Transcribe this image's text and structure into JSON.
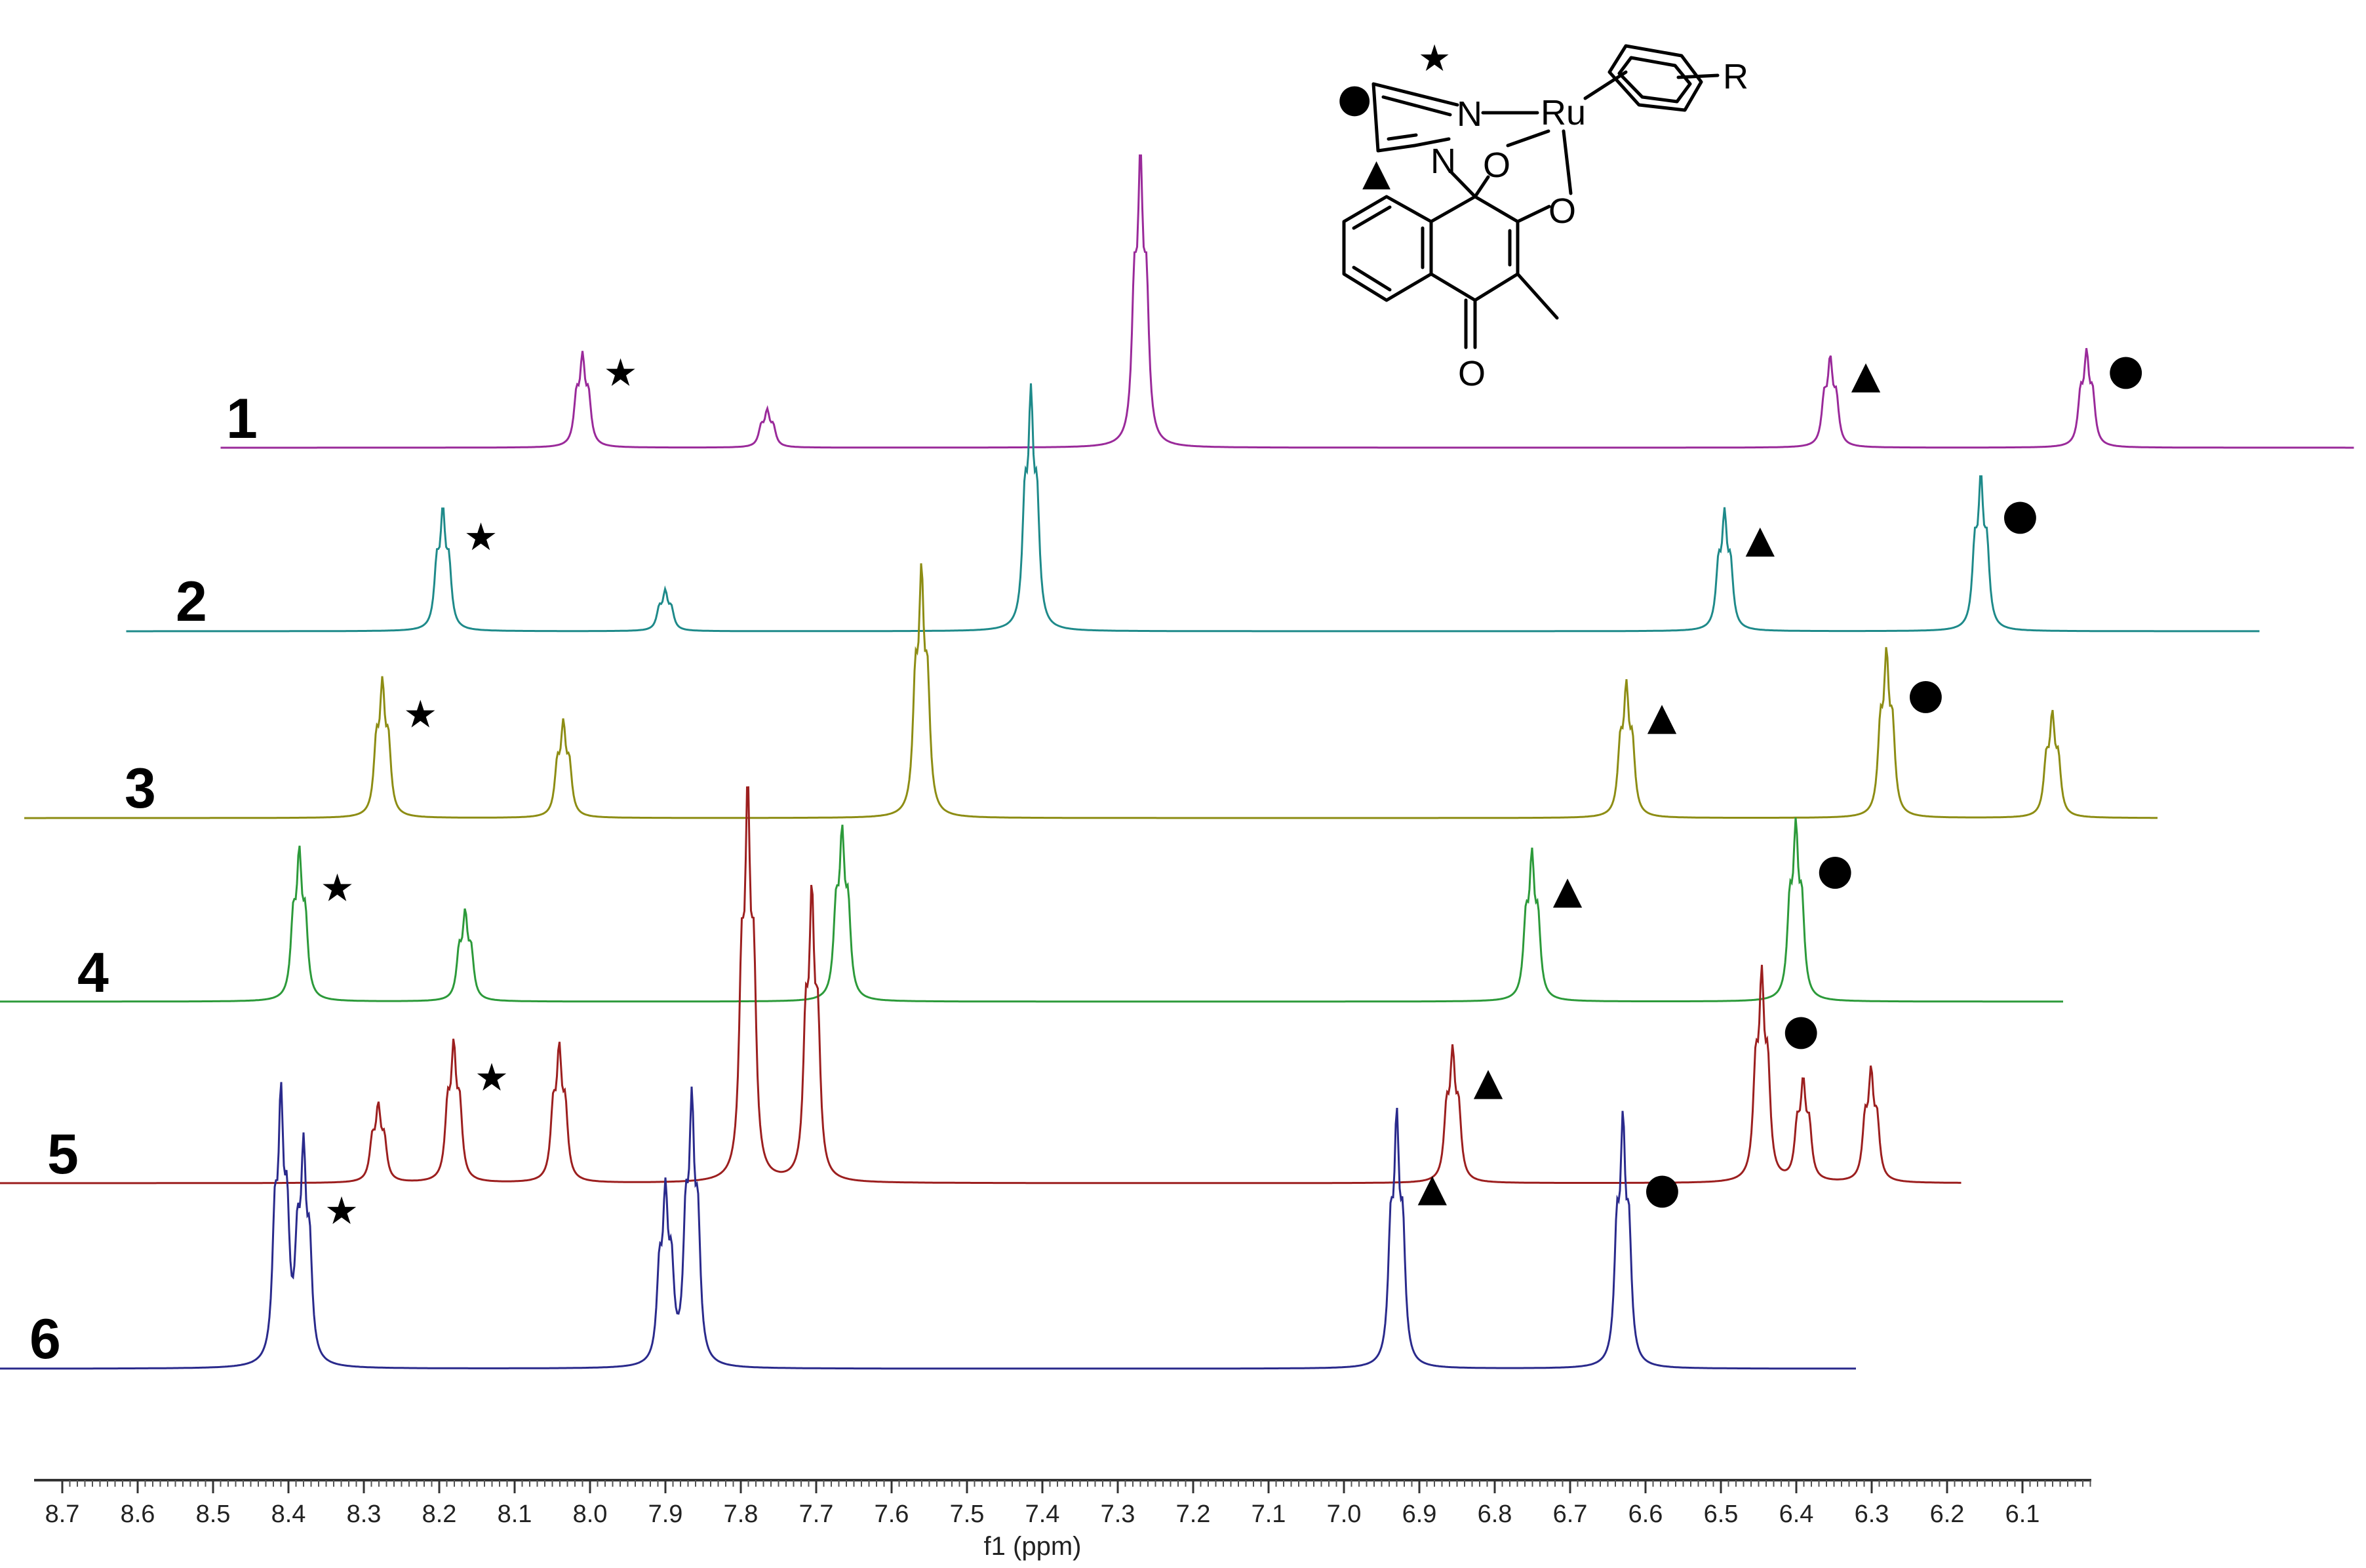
{
  "chart_data": {
    "type": "line",
    "title": "",
    "xlabel": "f1 (ppm)",
    "ylabel": "",
    "x_reversed": true,
    "xlim": [
      8.72,
      6.0
    ],
    "x_ticks": [
      "8.7",
      "8.6",
      "8.5",
      "8.4",
      "8.3",
      "8.2",
      "8.1",
      "8.0",
      "7.9",
      "7.8",
      "7.7",
      "7.6",
      "7.5",
      "7.4",
      "7.3",
      "7.2",
      "7.1",
      "7.0",
      "6.9",
      "6.8",
      "6.7",
      "6.6",
      "6.5",
      "6.4",
      "6.3",
      "6.2",
      "6.1"
    ],
    "grid": false,
    "legend": "none",
    "peak_markers": {
      "star": "★",
      "triangle": "▲",
      "circle": "●"
    },
    "series": [
      {
        "name": "1",
        "color": "#9a2a9a",
        "x_start": 8.49,
        "x_end": 5.66,
        "peaks": [
          {
            "x": 8.01,
            "h": 0.32,
            "mark": "star"
          },
          {
            "x": 7.765,
            "h": 0.13
          },
          {
            "x": 7.27,
            "h": 1.0
          },
          {
            "x": 6.355,
            "h": 0.31,
            "mark": "triangle"
          },
          {
            "x": 6.015,
            "h": 0.33,
            "mark": "circle"
          }
        ]
      },
      {
        "name": "2",
        "color": "#1e8a8a",
        "x_start": 8.55,
        "x_end": 5.72,
        "peaks": [
          {
            "x": 8.13,
            "h": 0.42,
            "mark": "star"
          },
          {
            "x": 7.835,
            "h": 0.14
          },
          {
            "x": 7.35,
            "h": 0.82
          },
          {
            "x": 6.43,
            "h": 0.41,
            "mark": "triangle"
          },
          {
            "x": 6.09,
            "h": 0.53,
            "mark": "circle"
          }
        ]
      },
      {
        "name": "3",
        "color": "#8d8d14",
        "x_start": 8.62,
        "x_end": 5.79,
        "peaks": [
          {
            "x": 8.145,
            "h": 0.47,
            "mark": "star"
          },
          {
            "x": 7.905,
            "h": 0.33
          },
          {
            "x": 7.43,
            "h": 0.85
          },
          {
            "x": 6.495,
            "h": 0.46,
            "mark": "triangle"
          },
          {
            "x": 6.15,
            "h": 0.57,
            "mark": "circle"
          },
          {
            "x": 5.93,
            "h": 0.36
          }
        ]
      },
      {
        "name": "4",
        "color": "#2c9a3a",
        "x_start": 8.68,
        "x_end": 5.85,
        "peaks": [
          {
            "x": 8.19,
            "h": 0.52,
            "mark": "star"
          },
          {
            "x": 7.97,
            "h": 0.31
          },
          {
            "x": 7.47,
            "h": 0.59
          },
          {
            "x": 6.555,
            "h": 0.51,
            "mark": "triangle"
          },
          {
            "x": 6.205,
            "h": 0.61,
            "mark": "circle"
          }
        ]
      },
      {
        "name": "5",
        "color": "#9c1f1f",
        "x_start": 8.75,
        "x_end": 5.92,
        "peaks": [
          {
            "x": 8.02,
            "h": 0.27
          },
          {
            "x": 7.92,
            "h": 0.48,
            "mark": "star"
          },
          {
            "x": 7.78,
            "h": 0.47
          },
          {
            "x": 7.53,
            "h": 1.35
          },
          {
            "x": 7.445,
            "h": 1.0
          },
          {
            "x": 6.595,
            "h": 0.46,
            "mark": "triangle"
          },
          {
            "x": 6.185,
            "h": 0.72,
            "mark": "circle"
          },
          {
            "x": 6.13,
            "h": 0.35
          },
          {
            "x": 6.04,
            "h": 0.39
          }
        ]
      },
      {
        "name": "6",
        "color": "#2a2a8c",
        "x_start": 8.72,
        "x_end": 6.02,
        "peaks": [
          {
            "x": 8.11,
            "h": 0.93
          },
          {
            "x": 8.08,
            "h": 0.75,
            "mark": "star"
          },
          {
            "x": 7.6,
            "h": 0.61
          },
          {
            "x": 7.565,
            "h": 0.92
          },
          {
            "x": 6.63,
            "h": 0.87,
            "mark": "triangle"
          },
          {
            "x": 6.33,
            "h": 0.86,
            "mark": "circle"
          }
        ]
      }
    ]
  },
  "structure": {
    "atoms": {
      "ru": "Ru",
      "n1": "N",
      "n2": "N",
      "o1": "O",
      "o2": "O",
      "o3": "O",
      "r": "R"
    }
  }
}
